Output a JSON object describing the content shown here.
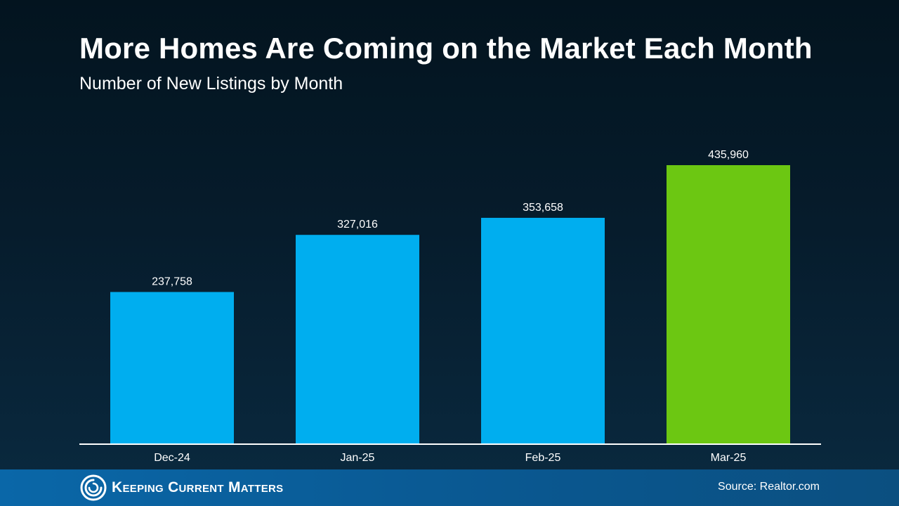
{
  "header": {
    "title": "More Homes Are Coming on the Market Each Month",
    "subtitle": "Number of New Listings by Month"
  },
  "chart_data": {
    "type": "bar",
    "title": "More Homes Are Coming on the Market Each Month",
    "subtitle": "Number of New Listings by Month",
    "categories": [
      "Dec-24",
      "Jan-25",
      "Feb-25",
      "Mar-25"
    ],
    "values": [
      237758,
      327016,
      353658,
      435960
    ],
    "value_labels": [
      "237,758",
      "327,016",
      "353,658",
      "435,960"
    ],
    "xlabel": "",
    "ylabel": "",
    "ylim": [
      0,
      500000
    ],
    "grid": false,
    "legend": "none",
    "colors": {
      "default": "#00aeef",
      "highlight": "#6cc712",
      "axis": "#ffffff",
      "label": "#ffffff"
    },
    "highlight_index": 3
  },
  "footer": {
    "logo_icon": "kcm-swirl-icon",
    "logo_text": "Keeping Current Matters",
    "source": "Source: Realtor.com"
  }
}
